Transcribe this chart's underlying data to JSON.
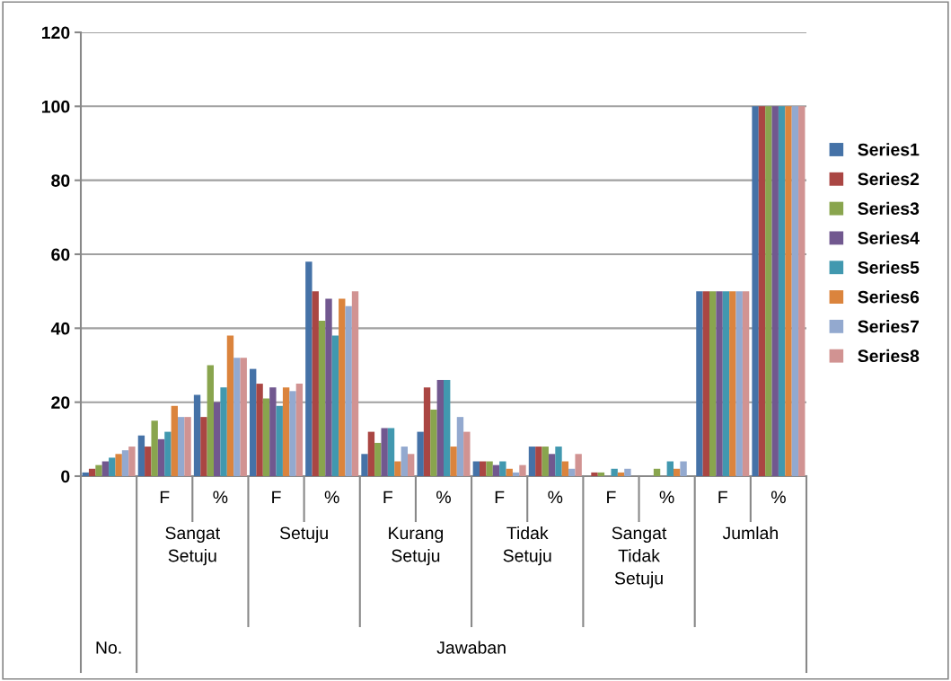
{
  "chart_data": {
    "type": "bar",
    "categories": [
      null,
      "F",
      "%",
      "F",
      "%",
      "F",
      "%",
      "F",
      "%",
      "F",
      "%",
      "F",
      "%"
    ],
    "annotations": [
      "No.",
      "Sangat Setuju",
      "Setuju",
      "Kurang Setuju",
      "Tidak Setuju",
      "Sangat Tidak Setuju",
      "Jumlah",
      "Jawaban"
    ],
    "series": [
      {
        "name": "Series1",
        "color": "#4572a7",
        "values": [
          1,
          11,
          22,
          29,
          58,
          6,
          12,
          4,
          8,
          0,
          0,
          50,
          100
        ]
      },
      {
        "name": "Series2",
        "color": "#aa4643",
        "values": [
          2,
          8,
          16,
          25,
          50,
          12,
          24,
          4,
          8,
          1,
          0,
          50,
          100
        ]
      },
      {
        "name": "Series3",
        "color": "#89a54e",
        "values": [
          3,
          15,
          30,
          21,
          42,
          9,
          18,
          4,
          8,
          1,
          2,
          50,
          100
        ]
      },
      {
        "name": "Series4",
        "color": "#71588f",
        "values": [
          4,
          10,
          20,
          24,
          48,
          13,
          26,
          3,
          6,
          0,
          0,
          50,
          100
        ]
      },
      {
        "name": "Series5",
        "color": "#4198af",
        "values": [
          5,
          12,
          24,
          19,
          38,
          13,
          26,
          4,
          8,
          2,
          4,
          50,
          100
        ]
      },
      {
        "name": "Series6",
        "color": "#db843d",
        "values": [
          6,
          19,
          38,
          24,
          48,
          4,
          8,
          2,
          4,
          1,
          2,
          50,
          100
        ]
      },
      {
        "name": "Series7",
        "color": "#93a9cf",
        "values": [
          7,
          16,
          32,
          23,
          46,
          8,
          16,
          1,
          2,
          2,
          4,
          50,
          100
        ]
      },
      {
        "name": "Series8",
        "color": "#d19392",
        "values": [
          8,
          16,
          32,
          25,
          50,
          6,
          12,
          3,
          6,
          0,
          0,
          50,
          100
        ]
      }
    ],
    "ylim": [
      0,
      120
    ],
    "yticks": [
      0,
      20,
      40,
      60,
      80,
      100,
      120
    ],
    "grid": "y",
    "legend": "right"
  }
}
